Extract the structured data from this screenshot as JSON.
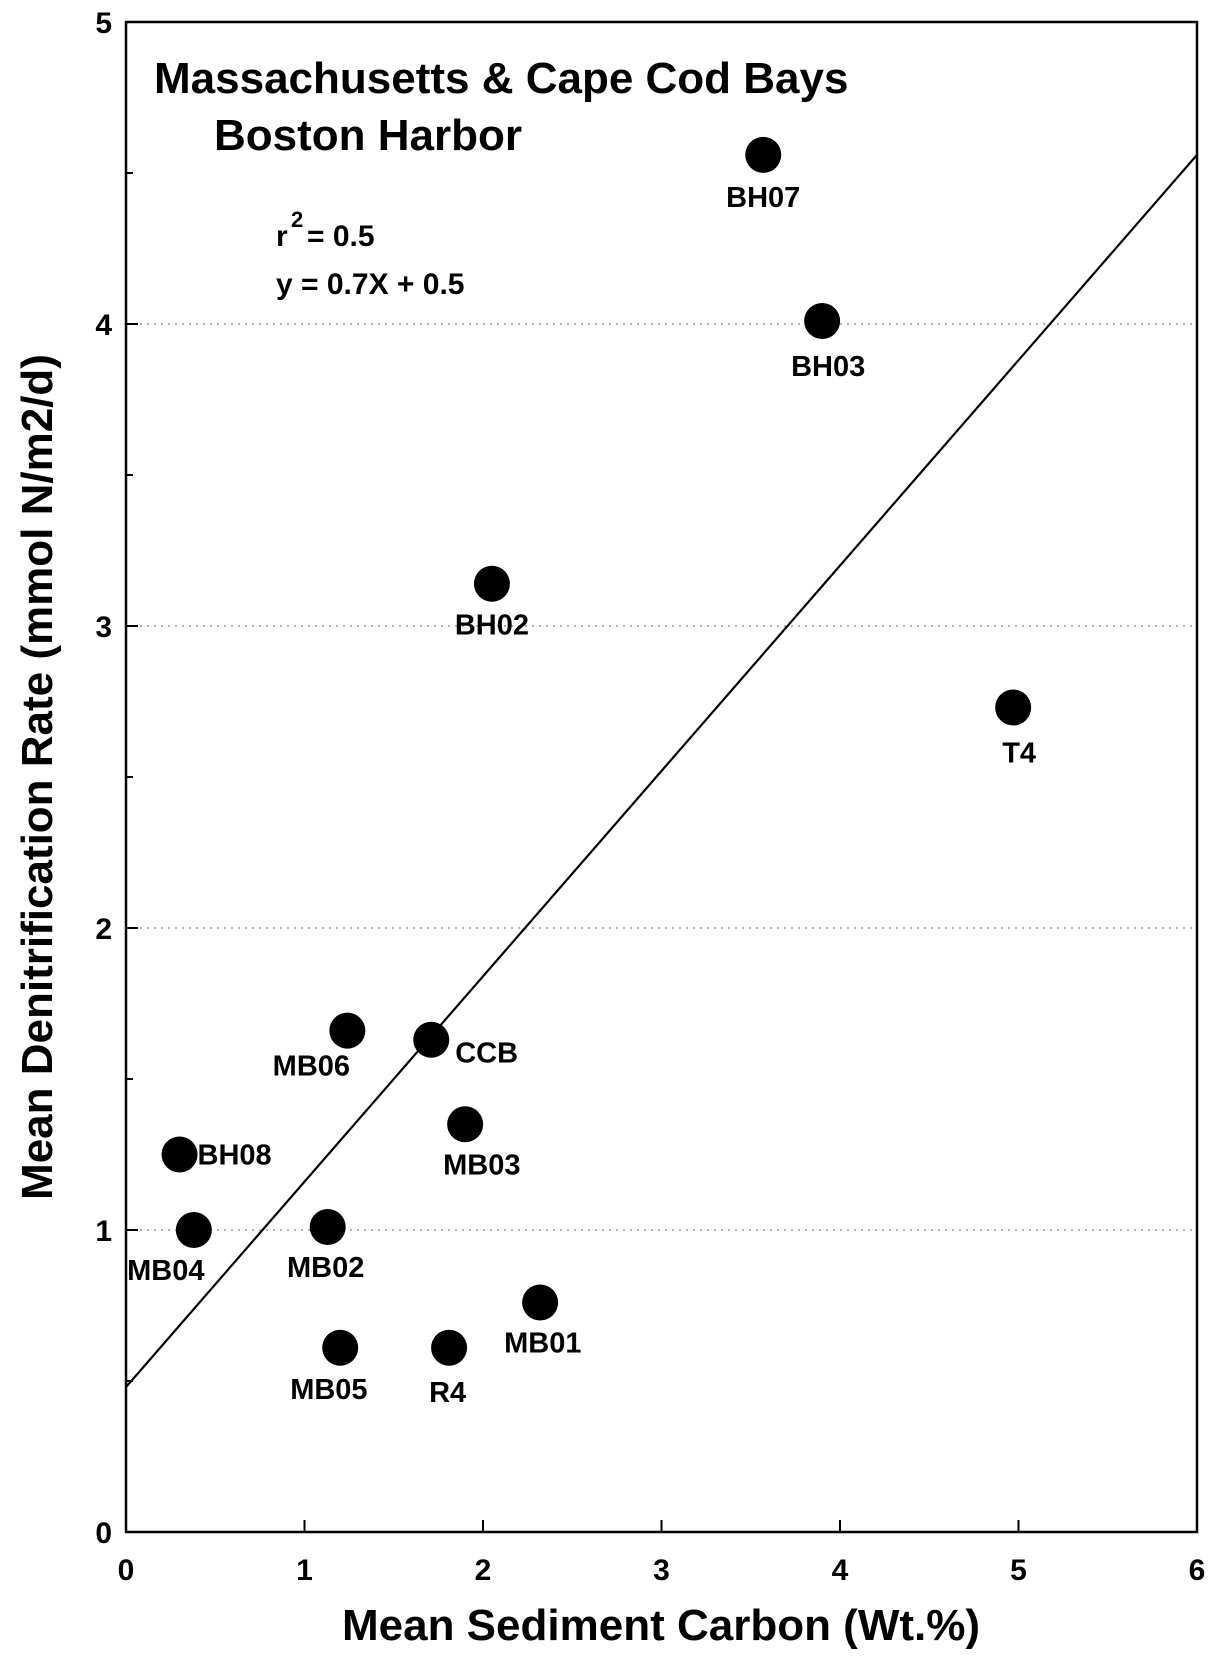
{
  "chart_data": {
    "type": "scatter",
    "title": "Massachusetts & Cape Cod Bays",
    "subtitle": "Boston Harbor",
    "xlabel": "Mean Sediment Carbon (Wt.%)",
    "ylabel": "Mean Denitrification Rate (mmol N/m2/d)",
    "xlim": [
      0,
      6
    ],
    "ylim": [
      0,
      5
    ],
    "xticks": [
      "0",
      "1",
      "2",
      "3",
      "4",
      "5",
      "6"
    ],
    "yticks": [
      "0",
      "1",
      "2",
      "3",
      "4",
      "5"
    ],
    "grid": "dotted horizontal",
    "annotation": {
      "r_prefix": "r",
      "r_exponent": "2",
      "r_value": "= 0.5",
      "equation": "y = 0.7X + 0.5"
    },
    "regression": {
      "slope": 0.68,
      "intercept": 0.48,
      "x_range": [
        0,
        6
      ]
    },
    "points": [
      {
        "label": "BH07",
        "x": 3.57,
        "y": 4.56
      },
      {
        "label": "BH03",
        "x": 3.9,
        "y": 4.01
      },
      {
        "label": "BH02",
        "x": 2.05,
        "y": 3.14
      },
      {
        "label": "T4",
        "x": 4.97,
        "y": 2.73
      },
      {
        "label": "MB06",
        "x": 1.24,
        "y": 1.66
      },
      {
        "label": "CCB",
        "x": 1.71,
        "y": 1.63
      },
      {
        "label": "MB03",
        "x": 1.9,
        "y": 1.35
      },
      {
        "label": "BH08",
        "x": 0.3,
        "y": 1.25
      },
      {
        "label": "MB04",
        "x": 0.38,
        "y": 1.0
      },
      {
        "label": "MB02",
        "x": 1.13,
        "y": 1.01
      },
      {
        "label": "MB01",
        "x": 2.32,
        "y": 0.76
      },
      {
        "label": "MB05",
        "x": 1.2,
        "y": 0.61
      },
      {
        "label": "R4",
        "x": 1.81,
        "y": 0.61
      }
    ]
  }
}
